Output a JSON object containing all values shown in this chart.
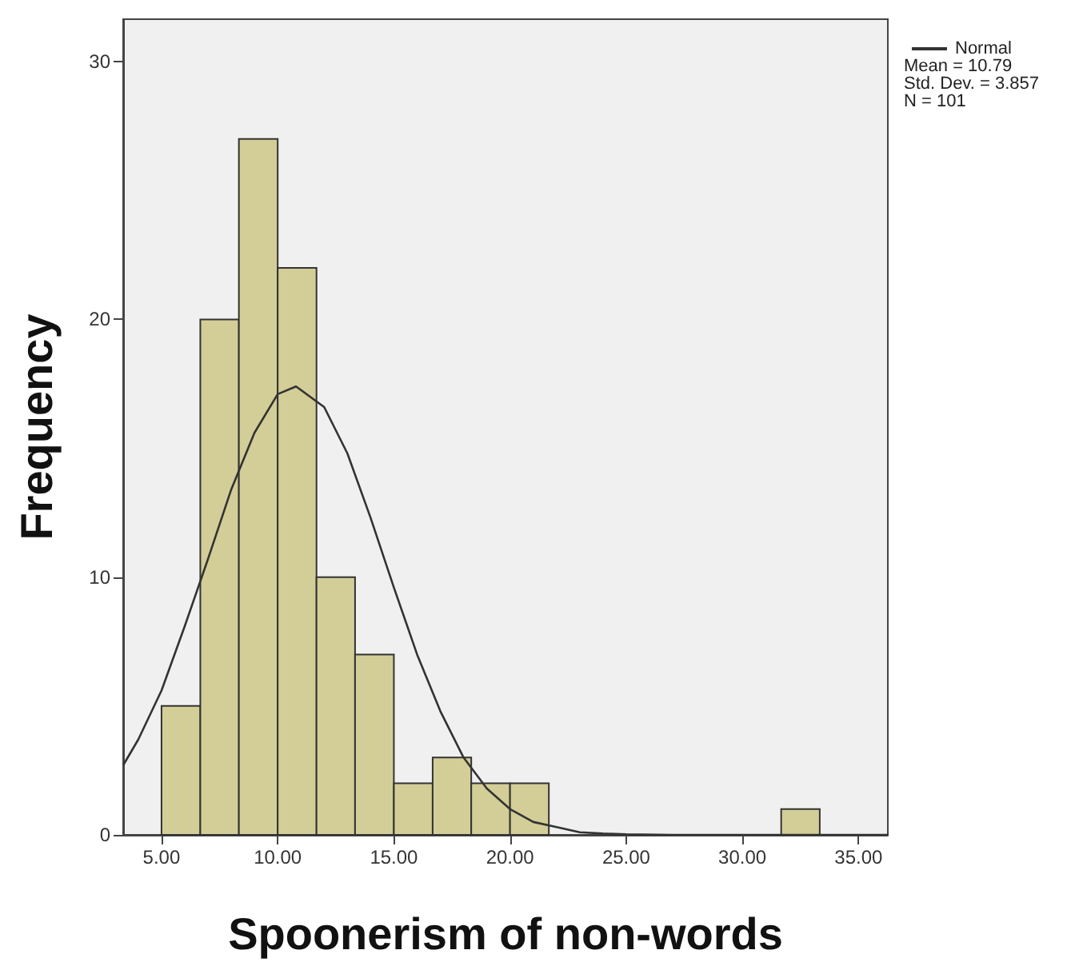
{
  "chart_data": {
    "type": "histogram",
    "xlabel": "Spoonerism of non-words",
    "ylabel": "Frequency",
    "bins": [
      5,
      6.67,
      8.33,
      10,
      11.67,
      13.33,
      15,
      16.67,
      18.33,
      20,
      21.67,
      23.33,
      25,
      26.67,
      28.33,
      30,
      31.67,
      33.33
    ],
    "values": [
      5,
      20,
      27,
      22,
      10,
      7,
      2,
      3,
      2,
      2,
      0,
      0,
      0,
      0,
      0,
      0,
      1
    ],
    "color": "#d3ce97",
    "series": [
      {
        "type": "line",
        "name": "Normal",
        "color": "#333333",
        "x": [
          3.35,
          4,
          5,
          6,
          7,
          8,
          9,
          10,
          10.79,
          12,
          13,
          14,
          15,
          16,
          17,
          18,
          19,
          20,
          21,
          22,
          23,
          24,
          25,
          27,
          30,
          36.26
        ],
        "values": [
          2.7,
          3.7,
          5.6,
          8.1,
          10.7,
          13.4,
          15.6,
          17.1,
          17.4,
          16.6,
          14.8,
          12.3,
          9.6,
          7.0,
          4.8,
          3.0,
          1.8,
          1.0,
          0.5,
          0.3,
          0.1,
          0.05,
          0.02,
          0,
          0,
          0
        ]
      }
    ],
    "legend": "top right",
    "annotations": [
      "Mean = 10.79",
      "Std. Dev. = 3.857",
      "N = 101"
    ],
    "xlim": [
      3.35,
      36.26
    ],
    "ylim": [
      0,
      31.65
    ],
    "xticks": [
      {
        "value": 5,
        "label": "5.00"
      },
      {
        "value": 10,
        "label": "10.00"
      },
      {
        "value": 15,
        "label": "15.00"
      },
      {
        "value": 20,
        "label": "20.00"
      },
      {
        "value": 25,
        "label": "25.00"
      },
      {
        "value": 30,
        "label": "30.00"
      },
      {
        "value": 35,
        "label": "35.00"
      }
    ],
    "yticks": [
      0,
      10,
      20,
      30
    ]
  }
}
